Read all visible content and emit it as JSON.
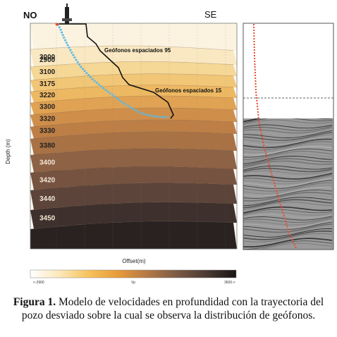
{
  "figure": {
    "dir_left": "NO",
    "dir_right": "SE",
    "ylabel": "Depth (m)",
    "xlabel": "Offset(m)",
    "annotation_95": "Geófonos espaciados 95",
    "annotation_15": "Geófonos espaciados 15",
    "layers": [
      {
        "label": "2900",
        "color": "#fbf3e0"
      },
      {
        "label": "3000",
        "color": "#f9e8c2"
      },
      {
        "label": "3100",
        "color": "#f5d796"
      },
      {
        "label": "3175",
        "color": "#f1c676"
      },
      {
        "label": "3220",
        "color": "#edb862"
      },
      {
        "label": "3300",
        "color": "#e0a253"
      },
      {
        "label": "3320",
        "color": "#cf8f4a"
      },
      {
        "label": "3330",
        "color": "#bd7f46"
      },
      {
        "label": "3380",
        "color": "#a87245"
      },
      {
        "label": "3400",
        "color": "#8e6244"
      },
      {
        "label": "3420",
        "color": "#765340"
      },
      {
        "label": "3440",
        "color": "#5c443a"
      },
      {
        "label": "3450",
        "color": "#3e302c"
      },
      {
        "label": "",
        "color": "#2a2220"
      }
    ],
    "colorbar": {
      "min_label": "<-2900",
      "mid_label": "Vp",
      "max_label": "3600->",
      "stops": [
        "#ffffff",
        "#fce8b8",
        "#f6c25a",
        "#e79a3a",
        "#b27847",
        "#7c5a44",
        "#4a3a33",
        "#1a1414"
      ]
    }
  },
  "caption": {
    "label": "Figura 1.",
    "text": " Modelo de velocidades en profundidad con la trayectoria del pozo desviado sobre la cual se observa la distribución de geófonos."
  }
}
